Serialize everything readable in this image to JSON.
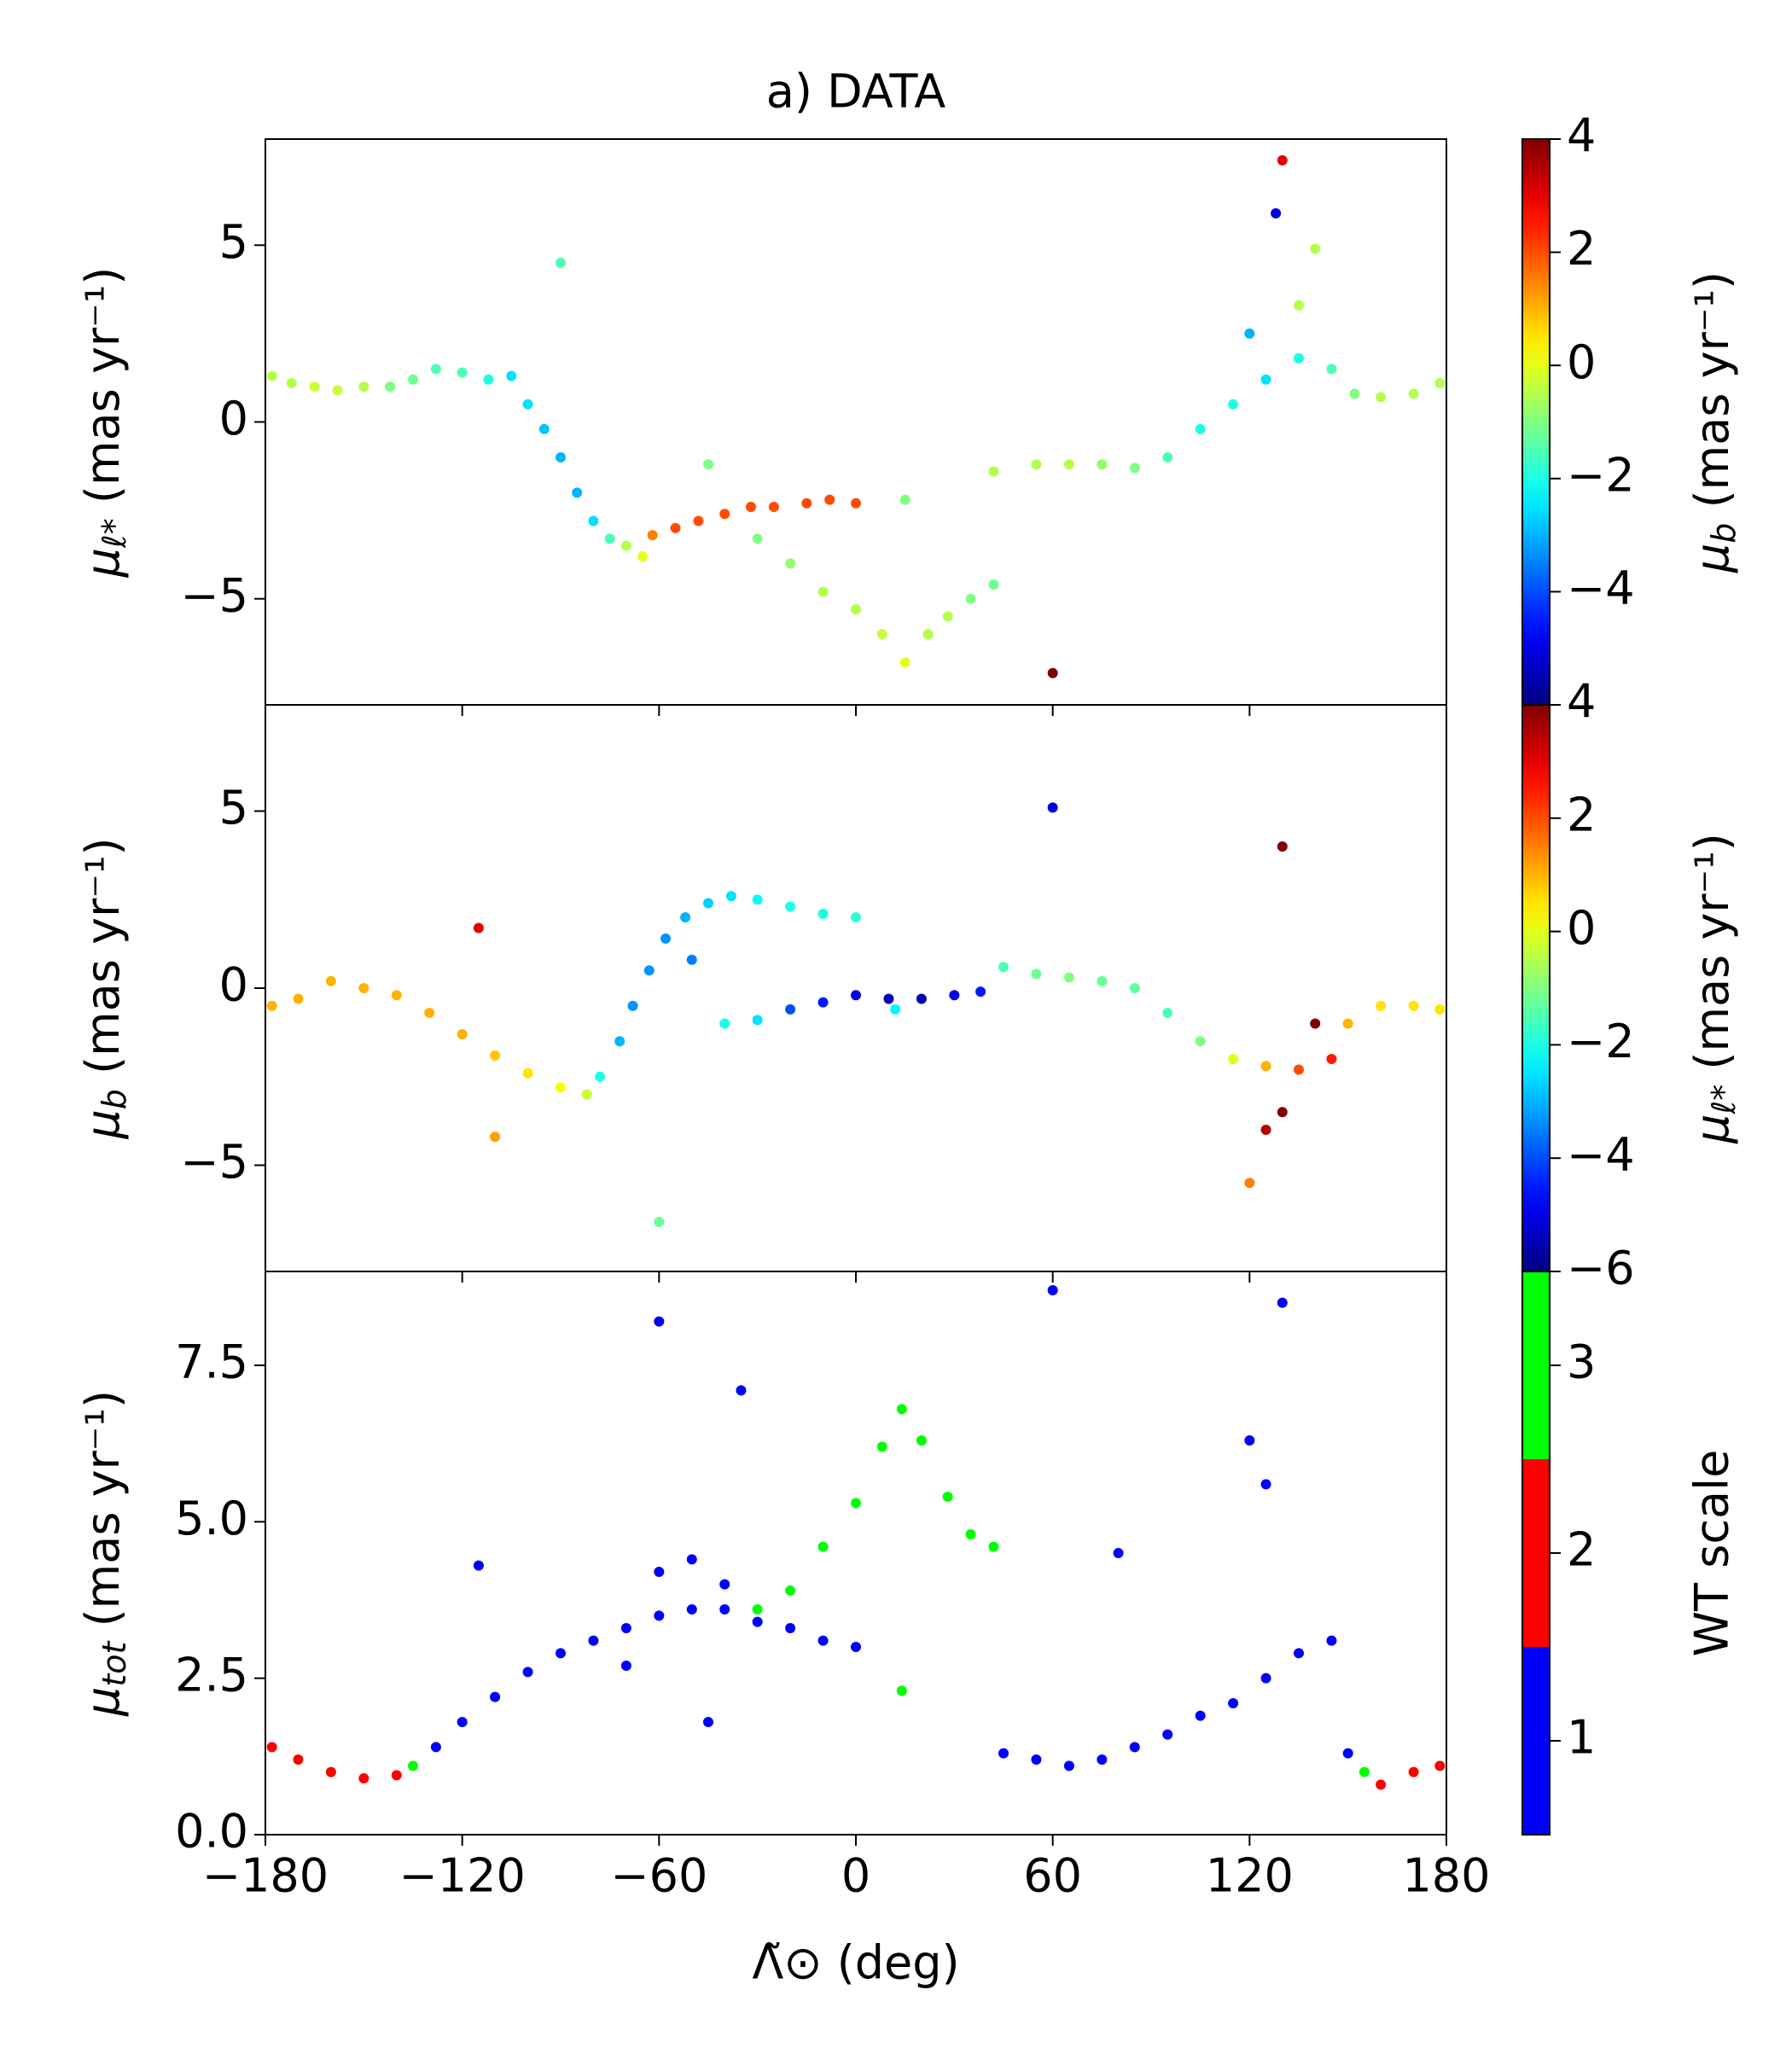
{
  "chart_data": [
    {
      "type": "scatter",
      "title": "a) DATA",
      "ylabel": {
        "symbol": "μ",
        "sub": "ℓ*",
        "unit": " (mas yr⁻¹)"
      },
      "xlim": [
        -180,
        180
      ],
      "ylim": [
        -8,
        8
      ],
      "yticks": [
        {
          "value": -5,
          "label": "−5"
        },
        0,
        5
      ],
      "x": [
        -178,
        -172,
        -165,
        -158,
        -150,
        -142,
        -135,
        -128,
        -120,
        -112,
        -105,
        -100,
        -95,
        -90,
        -85,
        -80,
        -75,
        -70,
        -65,
        -62,
        -55,
        -48,
        -40,
        -32,
        -25,
        -15,
        -8,
        0,
        -30,
        -20,
        -10,
        0,
        8,
        15,
        22,
        28,
        35,
        42,
        15,
        42,
        55,
        65,
        75,
        85,
        95,
        105,
        115,
        125,
        135,
        145,
        152,
        160,
        170,
        178,
        -90,
        -45,
        128,
        130,
        140,
        60,
        135,
        120
      ],
      "values": [
        1.3,
        1.1,
        1.0,
        0.9,
        1.0,
        1.0,
        1.2,
        1.5,
        1.4,
        1.2,
        1.3,
        0.5,
        -0.2,
        -1,
        -2,
        -2.8,
        -3.3,
        -3.5,
        -3.8,
        -3.2,
        -3.0,
        -2.8,
        -2.6,
        -2.4,
        -2.4,
        -2.3,
        -2.2,
        -2.3,
        -3.3,
        -4,
        -4.8,
        -5.3,
        -6,
        -6.8,
        -6,
        -5.5,
        -5,
        -4.6,
        -2.2,
        -1.4,
        -1.2,
        -1.2,
        -1.2,
        -1.3,
        -1,
        -0.2,
        0.5,
        1.2,
        1.8,
        1.5,
        0.8,
        0.7,
        0.8,
        1.1,
        4.5,
        -1.2,
        5.9,
        7.4,
        4.9,
        -7.1,
        3.3,
        2.5
      ],
      "color_values": [
        -0.5,
        -0.5,
        -0.3,
        -0.3,
        -0.5,
        -1,
        -1.2,
        -1.5,
        -1.5,
        -2,
        -2.5,
        -2.5,
        -2.8,
        -3,
        -3,
        -2.5,
        -1.5,
        -0.5,
        0,
        1.5,
        2,
        2,
        2,
        2,
        2,
        2,
        2,
        2,
        -1,
        -0.8,
        -0.5,
        -0.5,
        -0.3,
        0,
        -0.5,
        -0.5,
        -1,
        -1.2,
        -1,
        -0.5,
        -0.5,
        -0.5,
        -0.8,
        -1,
        -1.5,
        -2,
        -2,
        -2.5,
        -2,
        -1.5,
        -1,
        -0.5,
        -0.5,
        -0.5,
        -1.5,
        -1,
        -5,
        3,
        -0.5,
        4,
        -0.5,
        -3
      ],
      "colorbar": {
        "label": {
          "symbol": "μ",
          "sub": "b",
          "unit": " (mas yr⁻¹)"
        },
        "cmap": "jet",
        "lim": [
          -6,
          4
        ],
        "ticks": [
          4,
          2,
          0,
          {
            "value": -2,
            "label": "−2"
          },
          {
            "value": -4,
            "label": "−4"
          }
        ]
      }
    },
    {
      "type": "scatter",
      "ylabel": {
        "symbol": "μ",
        "sub": "b",
        "unit": " (mas yr⁻¹)"
      },
      "xlim": [
        -180,
        180
      ],
      "ylim": [
        -8,
        8
      ],
      "yticks": [
        {
          "value": -5,
          "label": "−5"
        },
        0,
        5
      ],
      "x": [
        -178,
        -170,
        -160,
        -150,
        -140,
        -130,
        -120,
        -110,
        -100,
        -90,
        -82,
        -78,
        -72,
        -68,
        -63,
        -58,
        -52,
        -45,
        -38,
        -30,
        -20,
        -10,
        0,
        -50,
        -40,
        -30,
        -20,
        -10,
        0,
        10,
        20,
        30,
        38,
        12,
        45,
        55,
        65,
        75,
        85,
        95,
        105,
        115,
        125,
        135,
        145,
        150,
        160,
        170,
        178,
        130,
        130,
        120,
        60,
        -60,
        -115,
        -110,
        140,
        125
      ],
      "values": [
        -0.5,
        -0.3,
        0.2,
        0,
        -0.2,
        -0.7,
        -1.3,
        -1.9,
        -2.4,
        -2.8,
        -3,
        -2.5,
        -1.5,
        -0.5,
        0.5,
        1.4,
        2,
        2.4,
        2.6,
        2.5,
        2.3,
        2.1,
        2,
        0.8,
        -1,
        -0.9,
        -0.6,
        -0.4,
        -0.2,
        -0.3,
        -0.3,
        -0.2,
        -0.1,
        -0.6,
        0.6,
        0.4,
        0.3,
        0.2,
        0,
        -0.7,
        -1.5,
        -2,
        -2.2,
        -2.3,
        -2,
        -1,
        -0.5,
        -0.5,
        -0.6,
        4,
        -3.5,
        -5.5,
        5.1,
        -6.6,
        1.7,
        -4.2,
        -1,
        -4
      ],
      "color_values": [
        1,
        1,
        1,
        1,
        1,
        1,
        1,
        0.8,
        0.5,
        0.2,
        -0.3,
        -2,
        -3,
        -3.3,
        -3.3,
        -3.3,
        -3,
        -2.7,
        -2.5,
        -2.2,
        -2,
        -2,
        -1.8,
        -3.5,
        -2,
        -2.5,
        -4,
        -4.5,
        -5,
        -5.5,
        -5.5,
        -5,
        -4.5,
        -2.3,
        -1.5,
        -1.2,
        -1,
        -1.2,
        -1.3,
        -1.5,
        -1,
        0,
        1,
        2,
        2.5,
        1,
        0.5,
        0.5,
        0.5,
        4,
        4,
        1.5,
        -5,
        -1.2,
        3,
        1.2,
        4,
        3.5
      ],
      "colorbar": {
        "label": {
          "symbol": "μ",
          "sub": "ℓ*",
          "unit": " (mas yr⁻¹)"
        },
        "cmap": "jet",
        "lim": [
          -6,
          4
        ],
        "ticks": [
          4,
          2,
          0,
          {
            "value": -2,
            "label": "−2"
          },
          {
            "value": -4,
            "label": "−4"
          },
          {
            "value": -6,
            "label": "−6"
          }
        ]
      }
    },
    {
      "type": "scatter",
      "ylabel": {
        "symbol": "μ",
        "sub": "tot",
        "unit": " (mas yr⁻¹)"
      },
      "xlabel": "Λ̃⊙ (deg)",
      "xlim": [
        -180,
        180
      ],
      "ylim": [
        0,
        9
      ],
      "xticks": [
        {
          "value": -180,
          "label": "−180"
        },
        {
          "value": -120,
          "label": "−120"
        },
        {
          "value": -60,
          "label": "−60"
        },
        0,
        60,
        120,
        180
      ],
      "yticks": [
        {
          "value": 0,
          "label": "0.0"
        },
        2.5,
        {
          "value": 5,
          "label": "5.0"
        },
        7.5
      ],
      "x": [
        -178,
        -170,
        -160,
        -150,
        -140,
        -135,
        -128,
        -120,
        -110,
        -100,
        -90,
        -80,
        -70,
        -60,
        -50,
        -40,
        -30,
        -20,
        -10,
        0,
        -60,
        -50,
        -40,
        -30,
        -20,
        -10,
        0,
        8,
        14,
        20,
        28,
        35,
        42,
        14,
        45,
        55,
        65,
        75,
        85,
        95,
        105,
        115,
        125,
        135,
        145,
        150,
        155,
        160,
        170,
        178,
        -60,
        -35,
        60,
        130,
        120,
        125,
        -70,
        -45,
        80,
        -115
      ],
      "values": [
        1.4,
        1.2,
        1.0,
        0.9,
        0.95,
        1.1,
        1.4,
        1.8,
        2.2,
        2.6,
        2.9,
        3.1,
        3.3,
        3.5,
        3.6,
        3.6,
        3.4,
        3.3,
        3.1,
        3.0,
        4.2,
        4.4,
        4.0,
        3.6,
        3.9,
        4.6,
        5.3,
        6.2,
        6.8,
        6.3,
        5.4,
        4.8,
        4.6,
        2.3,
        1.3,
        1.2,
        1.1,
        1.2,
        1.4,
        1.6,
        1.9,
        2.1,
        2.5,
        2.9,
        3.1,
        1.3,
        1.0,
        0.8,
        1.0,
        1.1,
        8.2,
        7.1,
        8.7,
        8.5,
        6.3,
        5.6,
        2.7,
        1.8,
        4.5,
        4.3
      ],
      "color_values": [
        2,
        2,
        2,
        2,
        2,
        3,
        1,
        1,
        1,
        1,
        1,
        1,
        1,
        1,
        1,
        1,
        1,
        1,
        1,
        1,
        1,
        1,
        1,
        3,
        3,
        3,
        3,
        3,
        3,
        3,
        3,
        3,
        3,
        3,
        1,
        1,
        1,
        1,
        1,
        1,
        1,
        1,
        1,
        1,
        1,
        1,
        3,
        2,
        2,
        2,
        1,
        1,
        1,
        1,
        1,
        1,
        1,
        1,
        1,
        1
      ],
      "colorbar": {
        "label": "WT scale",
        "categories": [
          1,
          2,
          3
        ],
        "colors": [
          "#0000ff",
          "#ff0000",
          "#00ff00"
        ],
        "ticks": [
          1,
          2,
          3
        ]
      }
    }
  ]
}
